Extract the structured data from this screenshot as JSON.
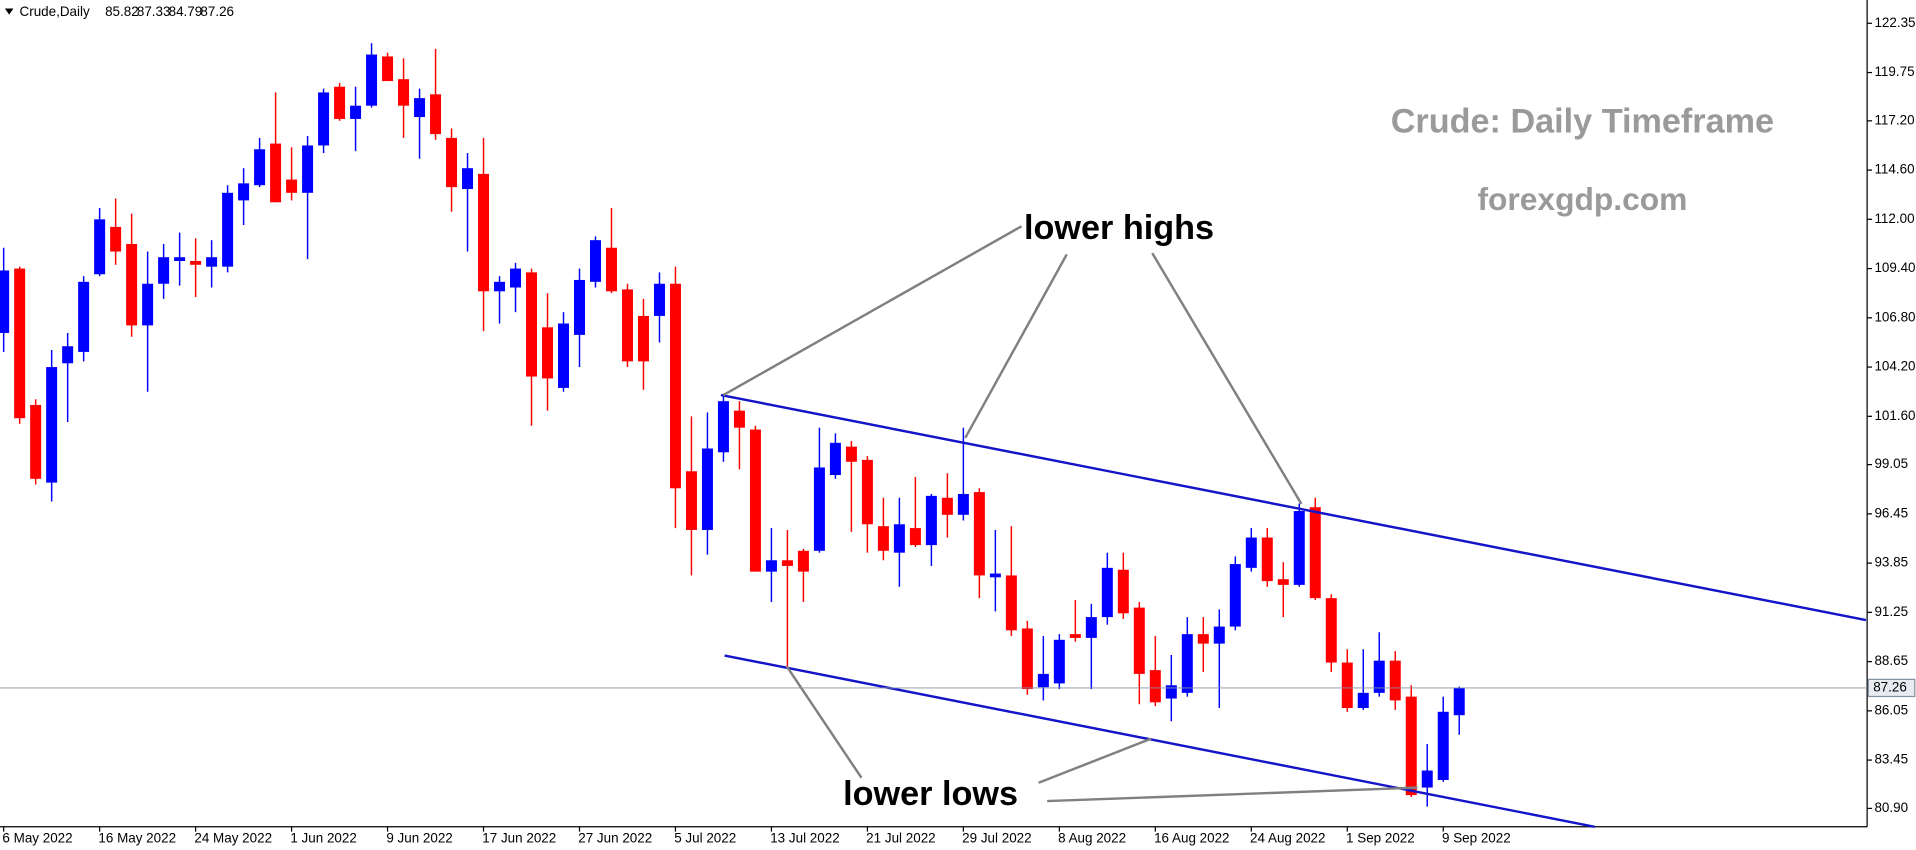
{
  "chart_data": {
    "type": "candlestick",
    "symbol": "Crude,Daily",
    "title": "Crude: Daily Timeframe",
    "subtitle": "forexgdp.com",
    "annotations": [
      "lower highs",
      "lower lows"
    ],
    "up_color": "#0000ff",
    "down_color": "#ff0000",
    "categories": [
      "6 May 2022",
      null,
      null,
      null,
      null,
      null,
      "16 May 2022",
      null,
      null,
      null,
      null,
      null,
      "24 May 2022",
      null,
      null,
      null,
      null,
      null,
      "1 Jun 2022",
      null,
      null,
      null,
      null,
      null,
      "9 Jun 2022",
      null,
      null,
      null,
      null,
      null,
      "17 Jun 2022",
      null,
      null,
      null,
      null,
      null,
      "27 Jun 2022",
      null,
      null,
      null,
      null,
      null,
      "5 Jul 2022",
      null,
      null,
      null,
      null,
      null,
      "13 Jul 2022",
      null,
      null,
      null,
      null,
      null,
      "21 Jul 2022",
      null,
      null,
      null,
      null,
      null,
      "29 Jul 2022",
      null,
      null,
      null,
      null,
      null,
      "8 Aug 2022",
      null,
      null,
      null,
      null,
      null,
      "16 Aug 2022",
      null,
      null,
      null,
      null,
      null,
      "24 Aug 2022",
      null,
      null,
      null,
      null,
      null,
      "1 Sep 2022",
      null,
      null,
      null,
      null,
      null,
      "9 Sep 2022",
      null
    ],
    "open": [
      106.0,
      109.4,
      102.2,
      98.1,
      104.4,
      105.0,
      109.1,
      111.6,
      110.7,
      106.4,
      108.6,
      109.8,
      109.8,
      109.5,
      109.5,
      113.0,
      113.8,
      116.0,
      114.1,
      113.4,
      115.9,
      119.0,
      117.3,
      118.0,
      120.6,
      119.4,
      117.4,
      118.6,
      116.3,
      113.6,
      114.4,
      108.2,
      108.4,
      109.2,
      106.3,
      103.1,
      105.9,
      108.7,
      110.5,
      108.3,
      106.9,
      106.9,
      108.6,
      98.7,
      95.6,
      99.7,
      101.9,
      100.9,
      93.4,
      94.0,
      94.5,
      94.5,
      98.5,
      100.0,
      99.3,
      95.8,
      94.4,
      95.7,
      94.8,
      97.3,
      96.4,
      97.6,
      93.1,
      93.2,
      90.4,
      87.3,
      87.5,
      90.1,
      89.9,
      91.0,
      93.5,
      91.5,
      88.2,
      86.7,
      87.0,
      90.1,
      89.6,
      90.5,
      93.6,
      95.2,
      93.0,
      92.7,
      96.8,
      92.0,
      88.6,
      86.2,
      87.0,
      88.7,
      86.8,
      82.0,
      82.4,
      85.82
    ],
    "high": [
      110.5,
      109.5,
      102.5,
      105.1,
      106.0,
      109.0,
      112.6,
      113.1,
      112.3,
      110.3,
      110.7,
      111.3,
      111.0,
      110.9,
      113.8,
      114.7,
      116.3,
      118.7,
      115.8,
      116.4,
      118.9,
      119.2,
      119.0,
      121.3,
      120.8,
      120.5,
      118.9,
      121.0,
      116.8,
      115.5,
      116.3,
      109.0,
      109.7,
      109.4,
      108.1,
      107.1,
      109.4,
      111.1,
      112.6,
      108.6,
      107.8,
      109.2,
      109.5,
      101.6,
      101.8,
      102.8,
      102.4,
      101.1,
      95.7,
      95.6,
      94.6,
      101.0,
      100.7,
      100.3,
      99.5,
      97.3,
      97.3,
      98.4,
      97.5,
      98.6,
      101.0,
      97.8,
      95.6,
      95.8,
      90.8,
      90.0,
      90.1,
      91.9,
      91.7,
      94.4,
      94.4,
      91.8,
      90.0,
      89.0,
      91.0,
      91.0,
      91.4,
      94.2,
      95.7,
      95.7,
      93.9,
      97.0,
      97.3,
      92.2,
      89.3,
      89.3,
      90.2,
      89.2,
      87.4,
      84.3,
      86.8,
      87.33
    ],
    "low": [
      105.0,
      101.2,
      98.0,
      97.1,
      101.3,
      104.5,
      109.0,
      109.6,
      105.8,
      102.9,
      107.8,
      108.5,
      107.9,
      108.4,
      109.2,
      111.7,
      113.7,
      112.9,
      113.0,
      109.9,
      115.5,
      117.2,
      115.6,
      117.9,
      119.3,
      116.3,
      115.2,
      116.2,
      112.4,
      110.3,
      106.1,
      106.5,
      107.1,
      101.1,
      101.9,
      102.9,
      104.2,
      108.4,
      108.1,
      104.2,
      103.0,
      105.5,
      95.7,
      93.2,
      94.3,
      99.2,
      98.8,
      93.4,
      91.8,
      88.4,
      91.8,
      94.4,
      98.3,
      95.5,
      94.4,
      94.0,
      92.6,
      94.7,
      93.7,
      95.2,
      96.1,
      92.0,
      91.3,
      90.0,
      86.9,
      86.6,
      87.2,
      89.7,
      87.2,
      90.6,
      90.9,
      86.4,
      86.3,
      85.5,
      86.8,
      88.1,
      86.2,
      90.3,
      93.4,
      92.6,
      91.0,
      92.6,
      91.9,
      88.1,
      86.0,
      86.1,
      86.8,
      86.1,
      81.5,
      81.0,
      82.3,
      84.79
    ],
    "close": [
      109.3,
      101.5,
      98.3,
      104.2,
      105.3,
      108.7,
      112.0,
      110.3,
      106.4,
      108.6,
      110.0,
      110.0,
      109.6,
      110.0,
      113.4,
      113.9,
      115.7,
      112.9,
      113.4,
      115.9,
      118.7,
      117.3,
      118.0,
      120.7,
      119.3,
      118.0,
      118.4,
      116.5,
      113.7,
      114.7,
      108.2,
      108.7,
      109.4,
      103.7,
      103.6,
      106.5,
      108.8,
      110.9,
      108.2,
      104.5,
      104.5,
      108.6,
      97.8,
      95.6,
      99.9,
      102.4,
      101.0,
      93.4,
      94.0,
      93.7,
      93.4,
      98.9,
      100.2,
      99.2,
      95.9,
      94.5,
      95.9,
      94.8,
      97.4,
      96.4,
      97.5,
      93.2,
      93.3,
      90.3,
      87.2,
      88.0,
      89.8,
      89.9,
      91.0,
      93.6,
      91.2,
      88.0,
      86.5,
      87.4,
      90.1,
      89.6,
      90.5,
      93.8,
      95.2,
      92.9,
      92.7,
      96.6,
      92.0,
      88.6,
      86.2,
      87.0,
      88.7,
      86.6,
      81.6,
      82.9,
      86.0,
      87.26
    ],
    "ylim": [
      79.93,
      123.58
    ],
    "yticks": [
      122.35,
      119.75,
      {
        "value": 117.2,
        "label": "117.20"
      },
      {
        "value": 114.6,
        "label": "114.60"
      },
      {
        "value": 112,
        "label": "112.00"
      },
      {
        "value": 109.4,
        "label": "109.40"
      },
      {
        "value": 106.8,
        "label": "106.80"
      },
      {
        "value": 104.2,
        "label": "104.20"
      },
      {
        "value": 101.6,
        "label": "101.60"
      },
      99.05,
      96.45,
      93.85,
      91.25,
      88.65,
      86.05,
      83.45,
      {
        "value": 80.9,
        "label": "80.90"
      }
    ]
  }
}
